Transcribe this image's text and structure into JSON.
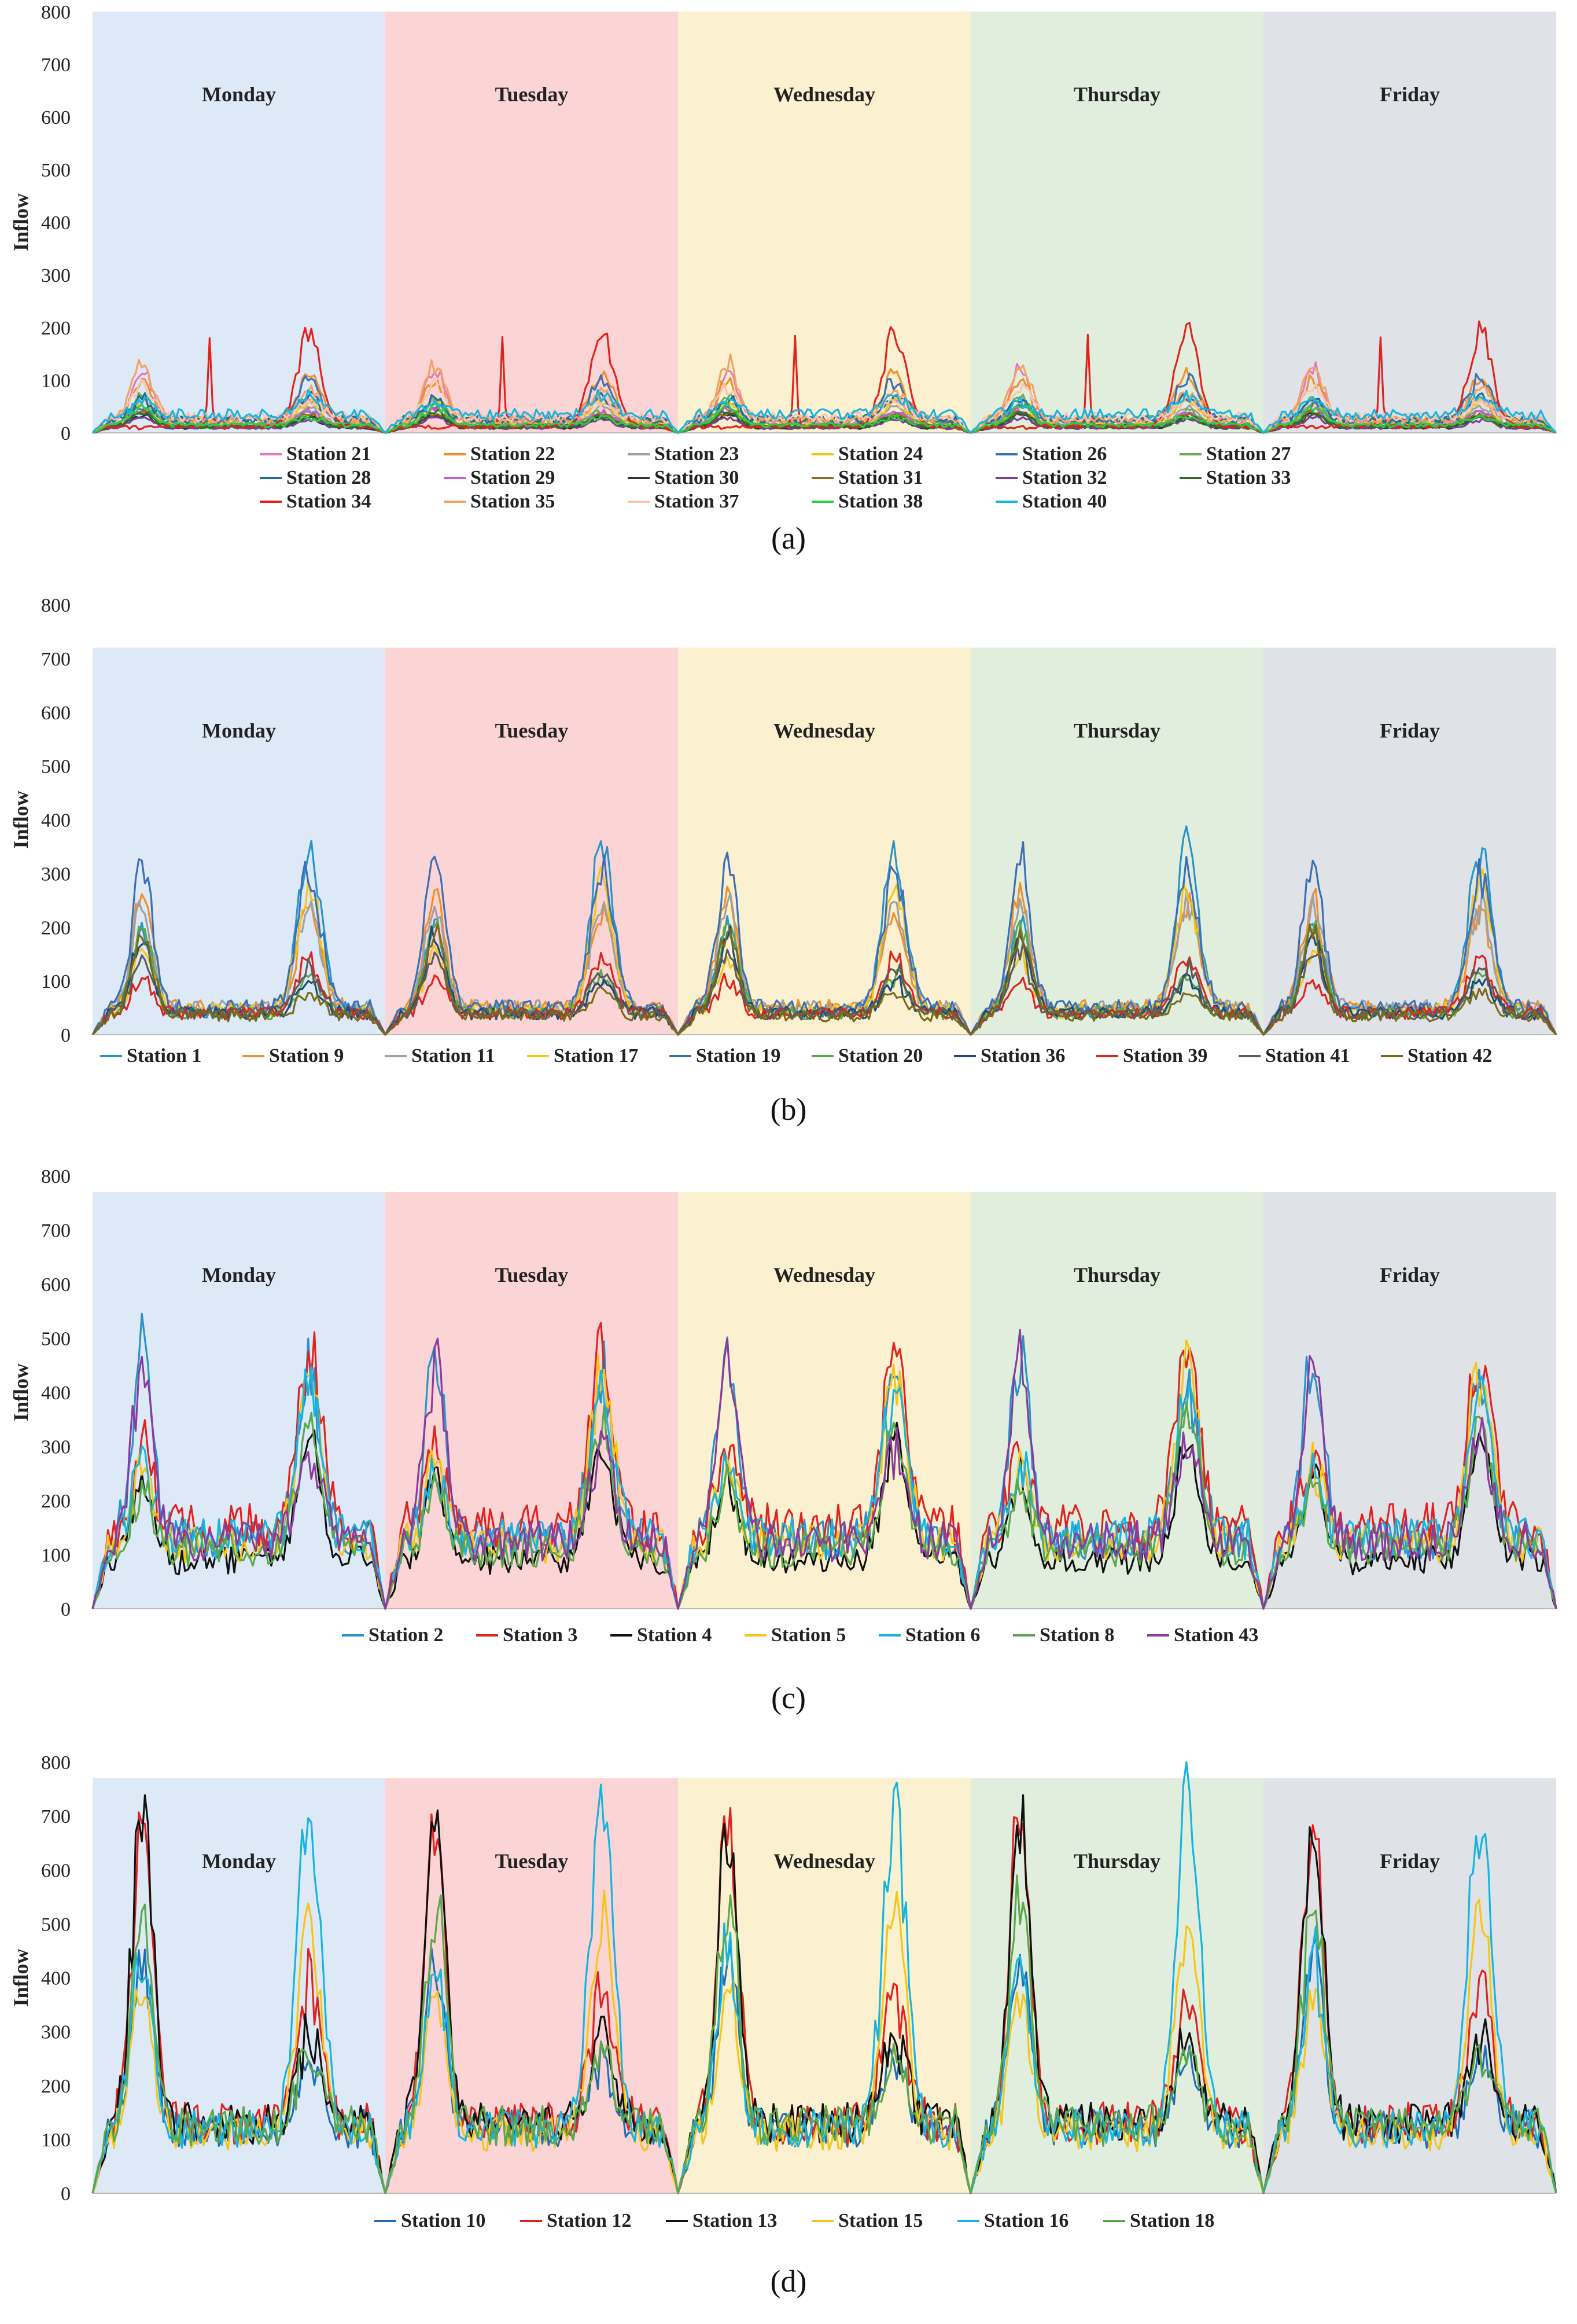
{
  "days": [
    "Monday",
    "Tuesday",
    "Wednesday",
    "Thursday",
    "Friday"
  ],
  "day_colors": [
    "#dde9f6",
    "#fbd5d5",
    "#fbf0cf",
    "#e2eedd",
    "#dfe3e7"
  ],
  "chart_data": [
    {
      "panel": "(a)",
      "type": "line",
      "ylabel": "Inflow",
      "ylim": [
        0,
        800
      ],
      "yticks": [
        "0",
        "100",
        "200",
        "300",
        "400",
        "500",
        "600",
        "700",
        "800"
      ],
      "background_top": 800,
      "gridlines": false,
      "legend_position": "bottom",
      "legend_columns": 6,
      "series": [
        {
          "name": "Station 21",
          "color": "#e377c2",
          "am": 120,
          "pm": 65,
          "base": 20
        },
        {
          "name": "Station 22",
          "color": "#f28e2b",
          "am": 100,
          "pm": 110,
          "base": 25
        },
        {
          "name": "Station 23",
          "color": "#a0a0a0",
          "am": 60,
          "pm": 50,
          "base": 15
        },
        {
          "name": "Station 24",
          "color": "#f5c518",
          "am": 55,
          "pm": 60,
          "base": 15
        },
        {
          "name": "Station 26",
          "color": "#3b6fb6",
          "am": 50,
          "pm": 100,
          "base": 25
        },
        {
          "name": "Station 27",
          "color": "#6aaa5a",
          "am": 70,
          "pm": 40,
          "base": 15
        },
        {
          "name": "Station 28",
          "color": "#1f6f99",
          "am": 65,
          "pm": 70,
          "base": 25
        },
        {
          "name": "Station 29",
          "color": "#c85ad6",
          "am": 45,
          "pm": 40,
          "base": 12
        },
        {
          "name": "Station 30",
          "color": "#333333",
          "am": 35,
          "pm": 30,
          "base": 10
        },
        {
          "name": "Station 31",
          "color": "#8c6d1f",
          "am": 40,
          "pm": 35,
          "base": 12
        },
        {
          "name": "Station 32",
          "color": "#7b3f99",
          "am": 30,
          "pm": 25,
          "base": 10
        },
        {
          "name": "Station 33",
          "color": "#2e6b2e",
          "am": 40,
          "pm": 30,
          "base": 12
        },
        {
          "name": "Station 34",
          "color": "#e0231f",
          "am": 10,
          "pm": 190,
          "base": 12
        },
        {
          "name": "Station 35",
          "color": "#f4a261",
          "am": 135,
          "pm": 80,
          "base": 25
        },
        {
          "name": "Station 37",
          "color": "#f7c6b0",
          "am": 90,
          "pm": 60,
          "base": 30
        },
        {
          "name": "Station 38",
          "color": "#2ecc40",
          "am": 50,
          "pm": 30,
          "base": 15
        },
        {
          "name": "Station 40",
          "color": "#17b4e0",
          "am": 60,
          "pm": 70,
          "base": 35
        }
      ]
    },
    {
      "panel": "(b)",
      "type": "line",
      "ylabel": "Inflow",
      "ylim": [
        0,
        800
      ],
      "yticks": [
        "0",
        "100",
        "200",
        "300",
        "400",
        "500",
        "600",
        "700",
        "800"
      ],
      "background_top": 720,
      "gridlines": false,
      "legend_position": "bottom",
      "legend_columns": 10,
      "series": [
        {
          "name": "Station 1",
          "color": "#2a93c9",
          "am": 200,
          "pm": 340,
          "base": 45
        },
        {
          "name": "Station 9",
          "color": "#f28e2b",
          "am": 260,
          "pm": 230,
          "base": 50
        },
        {
          "name": "Station 11",
          "color": "#a0a0a0",
          "am": 240,
          "pm": 240,
          "base": 50
        },
        {
          "name": "Station 17",
          "color": "#f5c518",
          "am": 150,
          "pm": 280,
          "base": 45
        },
        {
          "name": "Station 19",
          "color": "#3b6fb6",
          "am": 320,
          "pm": 300,
          "base": 50
        },
        {
          "name": "Station 20",
          "color": "#5aa84a",
          "am": 200,
          "pm": 110,
          "base": 40
        },
        {
          "name": "Station 36",
          "color": "#1c4a7a",
          "am": 180,
          "pm": 100,
          "base": 40
        },
        {
          "name": "Station 39",
          "color": "#e0231f",
          "am": 100,
          "pm": 140,
          "base": 40
        },
        {
          "name": "Station 41",
          "color": "#5a5a5a",
          "am": 150,
          "pm": 120,
          "base": 40
        },
        {
          "name": "Station 42",
          "color": "#7a6a1a",
          "am": 190,
          "pm": 80,
          "base": 35
        }
      ]
    },
    {
      "panel": "(c)",
      "type": "line",
      "ylabel": "Inflow",
      "ylim": [
        0,
        800
      ],
      "yticks": [
        "0",
        "100",
        "200",
        "300",
        "400",
        "500",
        "600",
        "700",
        "800"
      ],
      "background_top": 770,
      "gridlines": false,
      "legend_position": "bottom",
      "legend_columns": 7,
      "series": [
        {
          "name": "Station 2",
          "color": "#2a93c9",
          "am": 470,
          "pm": 420,
          "base": 130
        },
        {
          "name": "Station 3",
          "color": "#e0231f",
          "am": 290,
          "pm": 480,
          "base": 150
        },
        {
          "name": "Station 4",
          "color": "#111111",
          "am": 240,
          "pm": 310,
          "base": 90
        },
        {
          "name": "Station 5",
          "color": "#f5c518",
          "am": 260,
          "pm": 440,
          "base": 120
        },
        {
          "name": "Station 6",
          "color": "#17b4e0",
          "am": 260,
          "pm": 400,
          "base": 130
        },
        {
          "name": "Station 8",
          "color": "#5aa84a",
          "am": 220,
          "pm": 340,
          "base": 110
        },
        {
          "name": "Station 43",
          "color": "#8a3c9c",
          "am": 450,
          "pm": 300,
          "base": 125
        }
      ]
    },
    {
      "panel": "(d)",
      "type": "line",
      "ylabel": "Inflow",
      "ylim": [
        0,
        800
      ],
      "yticks": [
        "0",
        "100",
        "200",
        "300",
        "400",
        "500",
        "600",
        "700",
        "800"
      ],
      "background_top": 770,
      "gridlines": false,
      "legend_position": "bottom",
      "legend_columns": 6,
      "series": [
        {
          "name": "Station 10",
          "color": "#1f6fb6",
          "am": 440,
          "pm": 250,
          "base": 120
        },
        {
          "name": "Station 12",
          "color": "#e0231f",
          "am": 700,
          "pm": 380,
          "base": 130
        },
        {
          "name": "Station 13",
          "color": "#111111",
          "am": 690,
          "pm": 290,
          "base": 130
        },
        {
          "name": "Station 15",
          "color": "#f5c518",
          "am": 380,
          "pm": 520,
          "base": 110
        },
        {
          "name": "Station 16",
          "color": "#17b4e0",
          "am": 450,
          "pm": 720,
          "base": 120
        },
        {
          "name": "Station 18",
          "color": "#5aa84a",
          "am": 540,
          "pm": 260,
          "base": 125
        }
      ]
    }
  ]
}
